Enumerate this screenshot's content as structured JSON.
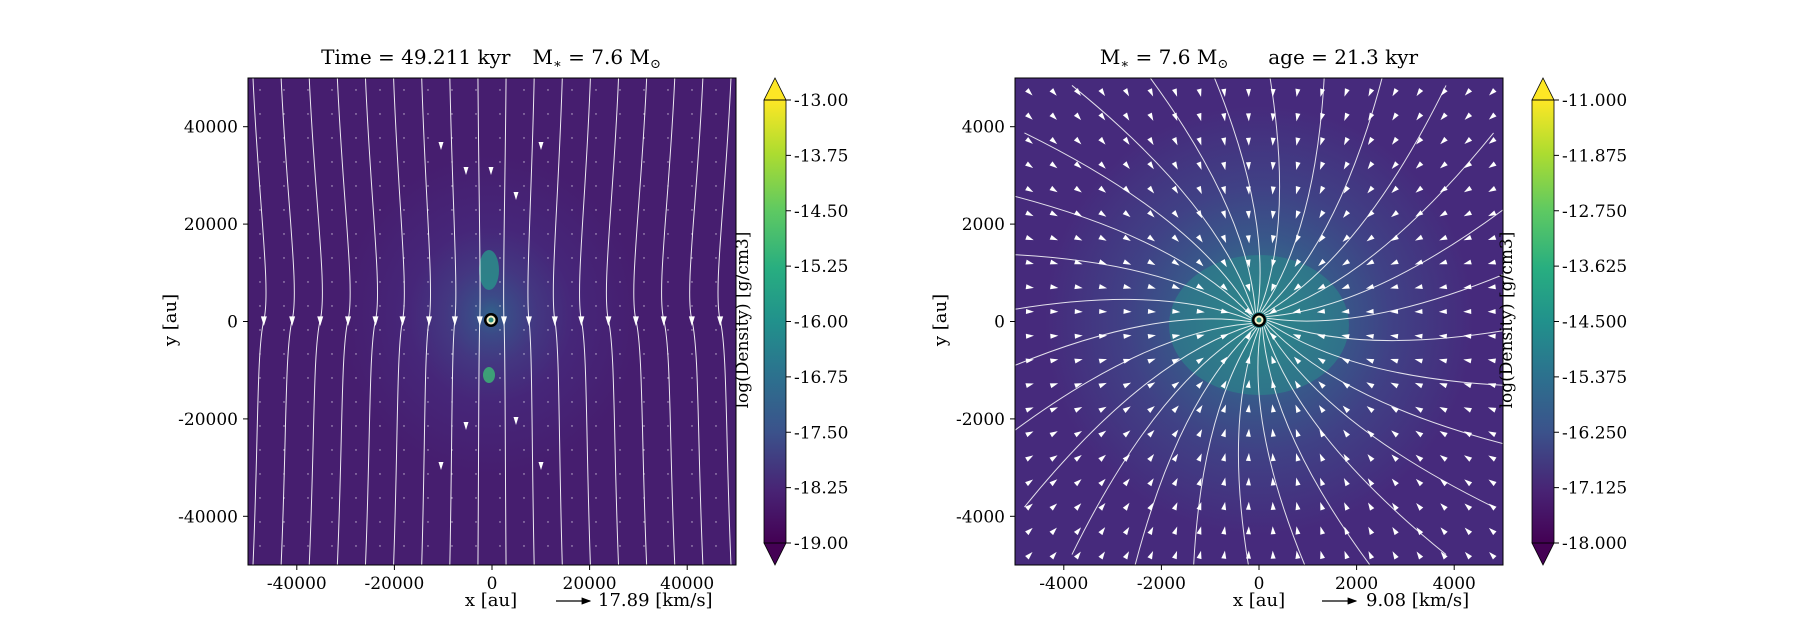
{
  "figure": {
    "panels": [
      {
        "title_left": "Time = 49.211  kyr",
        "title_right": "M",
        "title_star": "∗",
        "title_mass": " = 7.6 M",
        "title_sun": "⊙",
        "xlabel": "x [au]",
        "ylabel": "y [au]",
        "velocity_key": "17.89 [km/s]",
        "colorbar_label": "log(Density) [g/cm3]"
      },
      {
        "title_left": "M",
        "title_star": "∗",
        "title_mass": " = 7.6 M",
        "title_sun": "⊙",
        "title_right": "age = 21.3  kyr",
        "xlabel": "x [au]",
        "ylabel": "y [au]",
        "velocity_key": "9.08 [km/s]",
        "colorbar_label": "log(Density) [g/cm3]"
      }
    ]
  },
  "chart_data": [
    {
      "type": "heatmap",
      "title": "Time = 49.211 kyr   M* = 7.6 M☉",
      "xlabel": "x [au]",
      "ylabel": "y [au]",
      "xlim": [
        -50000,
        50000
      ],
      "ylim": [
        -50000,
        50000
      ],
      "xticks": [
        "-40000",
        "-20000",
        "0",
        "20000",
        "40000"
      ],
      "xtick_values": [
        -40000,
        -20000,
        0,
        20000,
        40000
      ],
      "yticks": [
        "40000",
        "20000",
        "0",
        "-20000",
        "-40000"
      ],
      "ytick_values": [
        40000,
        20000,
        0,
        -20000,
        -40000
      ],
      "colorbar": {
        "label": "log(Density) [g/cm3]",
        "range": [
          -19.0,
          -13.0
        ],
        "ticks": [
          "-13.00",
          "-13.75",
          "-14.50",
          "-15.25",
          "-16.00",
          "-16.75",
          "-17.50",
          "-18.25",
          "-19.00"
        ],
        "colormap": "viridis"
      },
      "velocity_key": "17.89 [km/s]",
      "sink": {
        "x": 0,
        "y": 0
      },
      "overlay": "vertical streamlines with arrows, collapsing toward midplane y=0",
      "grid": false
    },
    {
      "type": "heatmap",
      "title": "M* = 7.6 M☉   age = 21.3 kyr",
      "xlabel": "x [au]",
      "ylabel": "y [au]",
      "xlim": [
        -5000,
        5000
      ],
      "ylim": [
        -5000,
        5000
      ],
      "xticks": [
        "-4000",
        "-2000",
        "0",
        "2000",
        "4000"
      ],
      "xtick_values": [
        -4000,
        -2000,
        0,
        2000,
        4000
      ],
      "yticks": [
        "4000",
        "2000",
        "0",
        "-2000",
        "-4000"
      ],
      "ytick_values": [
        4000,
        2000,
        0,
        -2000,
        -4000
      ],
      "colorbar": {
        "label": "log(Density) [g/cm3]",
        "range": [
          -18.0,
          -11.0
        ],
        "ticks": [
          "-11.000",
          "-11.875",
          "-12.750",
          "-13.625",
          "-14.500",
          "-15.375",
          "-16.250",
          "-17.125",
          "-18.000"
        ],
        "colormap": "viridis"
      },
      "velocity_key": "9.08 [km/s]",
      "sink": {
        "x": 0,
        "y": 0
      },
      "overlay": "radially infalling streamlines with arrow vector field",
      "grid": false
    }
  ]
}
